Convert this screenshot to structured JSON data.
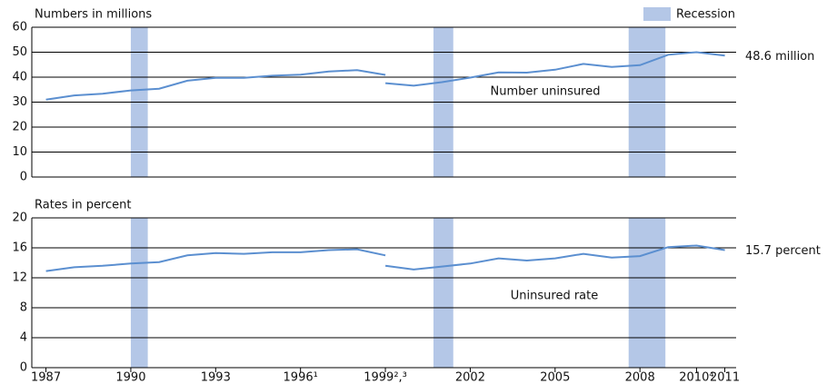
{
  "chart_data": [
    {
      "type": "line",
      "axis_title": "Numbers in millions",
      "x": [
        1987,
        1988,
        1989,
        1990,
        1991,
        1992,
        1993,
        1994,
        1995,
        1996,
        1997,
        1998,
        1999,
        null,
        1999,
        2000,
        2001,
        2002,
        2003,
        2004,
        2005,
        2006,
        2007,
        2008,
        2009,
        2010,
        2011
      ],
      "series": [
        {
          "name": "Number uninsured",
          "color": "#5b8fd0",
          "values": [
            31.0,
            32.7,
            33.4,
            34.7,
            35.4,
            38.6,
            39.7,
            39.7,
            40.6,
            41.0,
            42.3,
            42.8,
            40.9,
            null,
            37.6,
            36.6,
            38.0,
            39.8,
            41.9,
            41.8,
            43.0,
            45.3,
            44.1,
            44.8,
            49.0,
            50.0,
            48.6
          ]
        }
      ],
      "end_label": "48.6 million",
      "bands": {
        "name": "Recession",
        "color": "#b4c7e7",
        "spans": [
          [
            1990.0,
            1990.6
          ],
          [
            2000.7,
            2001.4
          ],
          [
            2007.6,
            2008.9
          ]
        ]
      },
      "xlim": [
        1986.5,
        2011.4
      ],
      "ylim": [
        0,
        60
      ],
      "yticks": [
        0,
        10,
        20,
        30,
        40,
        50,
        60
      ],
      "grid": true
    },
    {
      "type": "line",
      "axis_title": "Rates in percent",
      "x": [
        1987,
        1988,
        1989,
        1990,
        1991,
        1992,
        1993,
        1994,
        1995,
        1996,
        1997,
        1998,
        1999,
        null,
        1999,
        2000,
        2001,
        2002,
        2003,
        2004,
        2005,
        2006,
        2007,
        2008,
        2009,
        2010,
        2011
      ],
      "series": [
        {
          "name": "Uninsured rate",
          "color": "#5b8fd0",
          "values": [
            12.9,
            13.4,
            13.6,
            13.9,
            14.1,
            15.0,
            15.3,
            15.2,
            15.4,
            15.4,
            15.7,
            15.8,
            15.0,
            null,
            13.6,
            13.1,
            13.5,
            13.9,
            14.6,
            14.3,
            14.6,
            15.2,
            14.7,
            14.9,
            16.1,
            16.3,
            15.7
          ]
        }
      ],
      "end_label": "15.7 percent",
      "bands": {
        "color": "#b4c7e7",
        "spans": [
          [
            1990.0,
            1990.6
          ],
          [
            2000.7,
            2001.4
          ],
          [
            2007.6,
            2008.9
          ]
        ]
      },
      "xlim": [
        1986.5,
        2011.4
      ],
      "xticks": [
        1987,
        1990,
        1993,
        {
          "value": 1996,
          "label": "1996¹"
        },
        {
          "value": 1999,
          "label": "1999²,³"
        },
        2002,
        2005,
        2008,
        {
          "value": 2010,
          "label": "2010⁴"
        },
        2011
      ],
      "ylim": [
        0,
        20
      ],
      "yticks": [
        0,
        4,
        8,
        12,
        16,
        20
      ],
      "grid": true
    }
  ]
}
